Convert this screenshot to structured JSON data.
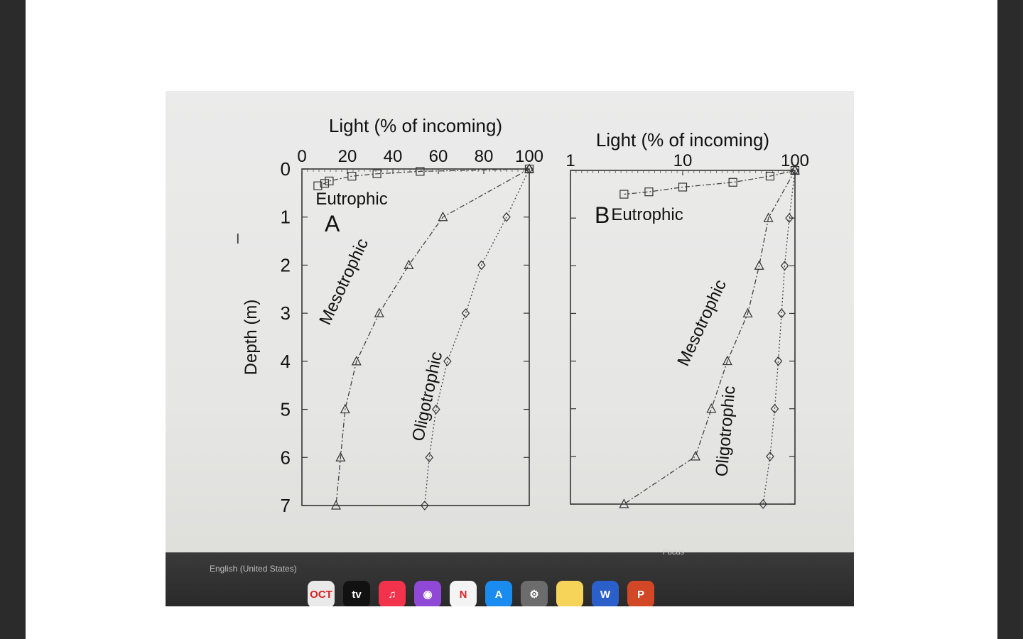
{
  "photo": {
    "chart_data": [
      {
        "type": "line",
        "panel_label": "A",
        "title": "Light (% of incoming)",
        "xlabel": "",
        "ylabel": "Depth (m)",
        "x_scale": "linear",
        "xlim": [
          0,
          100
        ],
        "ylim": [
          7,
          0
        ],
        "x_ticks": [
          "0",
          "20",
          "40",
          "60",
          "80",
          "100"
        ],
        "y_ticks": [
          "0",
          "1",
          "2",
          "3",
          "4",
          "5",
          "6",
          "7"
        ],
        "series": [
          {
            "name": "Eutrophic",
            "marker": "square",
            "line": "dash-dot",
            "points": [
              [
                100,
                0
              ],
              [
                52,
                0.05
              ],
              [
                33,
                0.1
              ],
              [
                22,
                0.15
              ],
              [
                12,
                0.25
              ],
              [
                10,
                0.3
              ],
              [
                7,
                0.35
              ]
            ]
          },
          {
            "name": "Mesotrophic",
            "marker": "triangle",
            "line": "dash-dot",
            "points": [
              [
                100,
                0
              ],
              [
                62,
                1
              ],
              [
                47,
                2
              ],
              [
                34,
                3
              ],
              [
                24,
                4
              ],
              [
                19,
                5
              ],
              [
                17,
                6
              ],
              [
                15,
                7
              ]
            ]
          },
          {
            "name": "Oligotrophic",
            "marker": "diamond",
            "line": "dotted",
            "points": [
              [
                100,
                0
              ],
              [
                90,
                1
              ],
              [
                79,
                2
              ],
              [
                72,
                3
              ],
              [
                64,
                4
              ],
              [
                59,
                5
              ],
              [
                56,
                6
              ],
              [
                54,
                7
              ]
            ]
          }
        ]
      },
      {
        "type": "line",
        "panel_label": "B",
        "title": "Light (% of incoming)",
        "xlabel": "",
        "ylabel": "",
        "x_scale": "log",
        "xlim": [
          1,
          100
        ],
        "ylim": [
          7,
          0
        ],
        "x_ticks": [
          "1",
          "10",
          "100"
        ],
        "y_ticks": [],
        "series": [
          {
            "name": "Eutrophic",
            "marker": "square",
            "line": "dash-dot",
            "points": [
              [
                100,
                0
              ],
              [
                60,
                0.12
              ],
              [
                28,
                0.25
              ],
              [
                10,
                0.35
              ],
              [
                5,
                0.45
              ],
              [
                3,
                0.5
              ]
            ]
          },
          {
            "name": "Mesotrophic",
            "marker": "triangle",
            "line": "dash-dot",
            "points": [
              [
                100,
                0
              ],
              [
                58,
                1
              ],
              [
                48,
                2
              ],
              [
                38,
                3
              ],
              [
                25,
                4
              ],
              [
                18,
                5
              ],
              [
                13,
                6
              ],
              [
                3,
                7
              ]
            ]
          },
          {
            "name": "Oligotrophic",
            "marker": "diamond",
            "line": "dotted",
            "points": [
              [
                100,
                0
              ],
              [
                89,
                1
              ],
              [
                81,
                2
              ],
              [
                76,
                3
              ],
              [
                71,
                4
              ],
              [
                66,
                5
              ],
              [
                60,
                6
              ],
              [
                52,
                7
              ]
            ]
          }
        ]
      }
    ],
    "taskbar": {
      "language": "English (United States)",
      "focus_label": "Focus",
      "dock": [
        {
          "icon": "calendar-icon",
          "label": "OCT",
          "color": "#e9e9e9"
        },
        {
          "icon": "tv-icon",
          "label": "tv",
          "color": "#111111"
        },
        {
          "icon": "music-icon",
          "label": "♫",
          "color": "#f2334b"
        },
        {
          "icon": "podcasts-icon",
          "label": "◉",
          "color": "#8f49d6"
        },
        {
          "icon": "news-icon",
          "label": "N",
          "color": "#f4f4f4"
        },
        {
          "icon": "app-store-icon",
          "label": "A",
          "color": "#1a8cf0"
        },
        {
          "icon": "settings-icon",
          "label": "⚙",
          "color": "#6c6c6c"
        },
        {
          "icon": "notes-icon",
          "label": "",
          "color": "#f6d45a"
        },
        {
          "icon": "word-icon",
          "label": "W",
          "color": "#2b5fc9"
        },
        {
          "icon": "powerpoint-icon",
          "label": "P",
          "color": "#d24726"
        }
      ]
    }
  }
}
